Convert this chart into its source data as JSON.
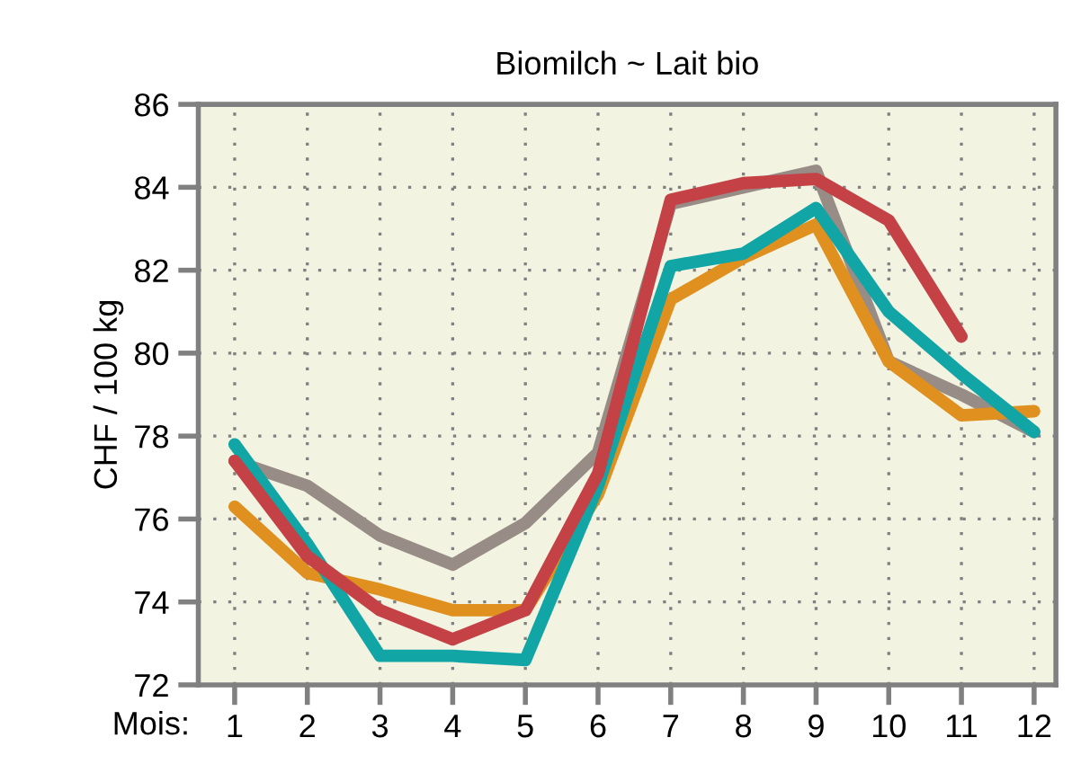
{
  "chart_data": {
    "type": "line",
    "title": "Biomilch ~ Lait bio",
    "ylabel": "CHF / 100 kg",
    "xlabel": "Mois:",
    "x": [
      1,
      2,
      3,
      4,
      5,
      6,
      7,
      8,
      9,
      10,
      11,
      12
    ],
    "series": [
      {
        "color": "#978c86",
        "values": [
          77.4,
          76.8,
          75.6,
          74.9,
          75.9,
          77.6,
          83.6,
          84.0,
          84.4,
          79.8,
          79.0,
          78.1
        ]
      },
      {
        "color": "#e0901f",
        "values": [
          76.3,
          74.7,
          74.3,
          73.8,
          73.8,
          76.6,
          81.3,
          82.3,
          83.1,
          79.8,
          78.5,
          78.6
        ]
      },
      {
        "color": "#12a5a5",
        "values": [
          77.8,
          75.4,
          72.7,
          72.7,
          72.6,
          76.8,
          82.1,
          82.4,
          83.5,
          81.0,
          79.5,
          78.1
        ]
      },
      {
        "color": "#c44145",
        "values": [
          77.4,
          75.1,
          73.8,
          73.1,
          73.8,
          77.1,
          83.7,
          84.1,
          84.2,
          83.2,
          80.4,
          null
        ]
      }
    ],
    "xlim": [
      0.5,
      12.3
    ],
    "xticks": [
      1,
      2,
      3,
      4,
      5,
      6,
      7,
      8,
      9,
      10,
      11,
      12
    ],
    "ylim": [
      72,
      86
    ],
    "yticks": [
      72,
      74,
      76,
      78,
      80,
      82,
      84,
      86
    ],
    "grid": true,
    "line_style": "solid",
    "marker": "none",
    "legend": false
  }
}
